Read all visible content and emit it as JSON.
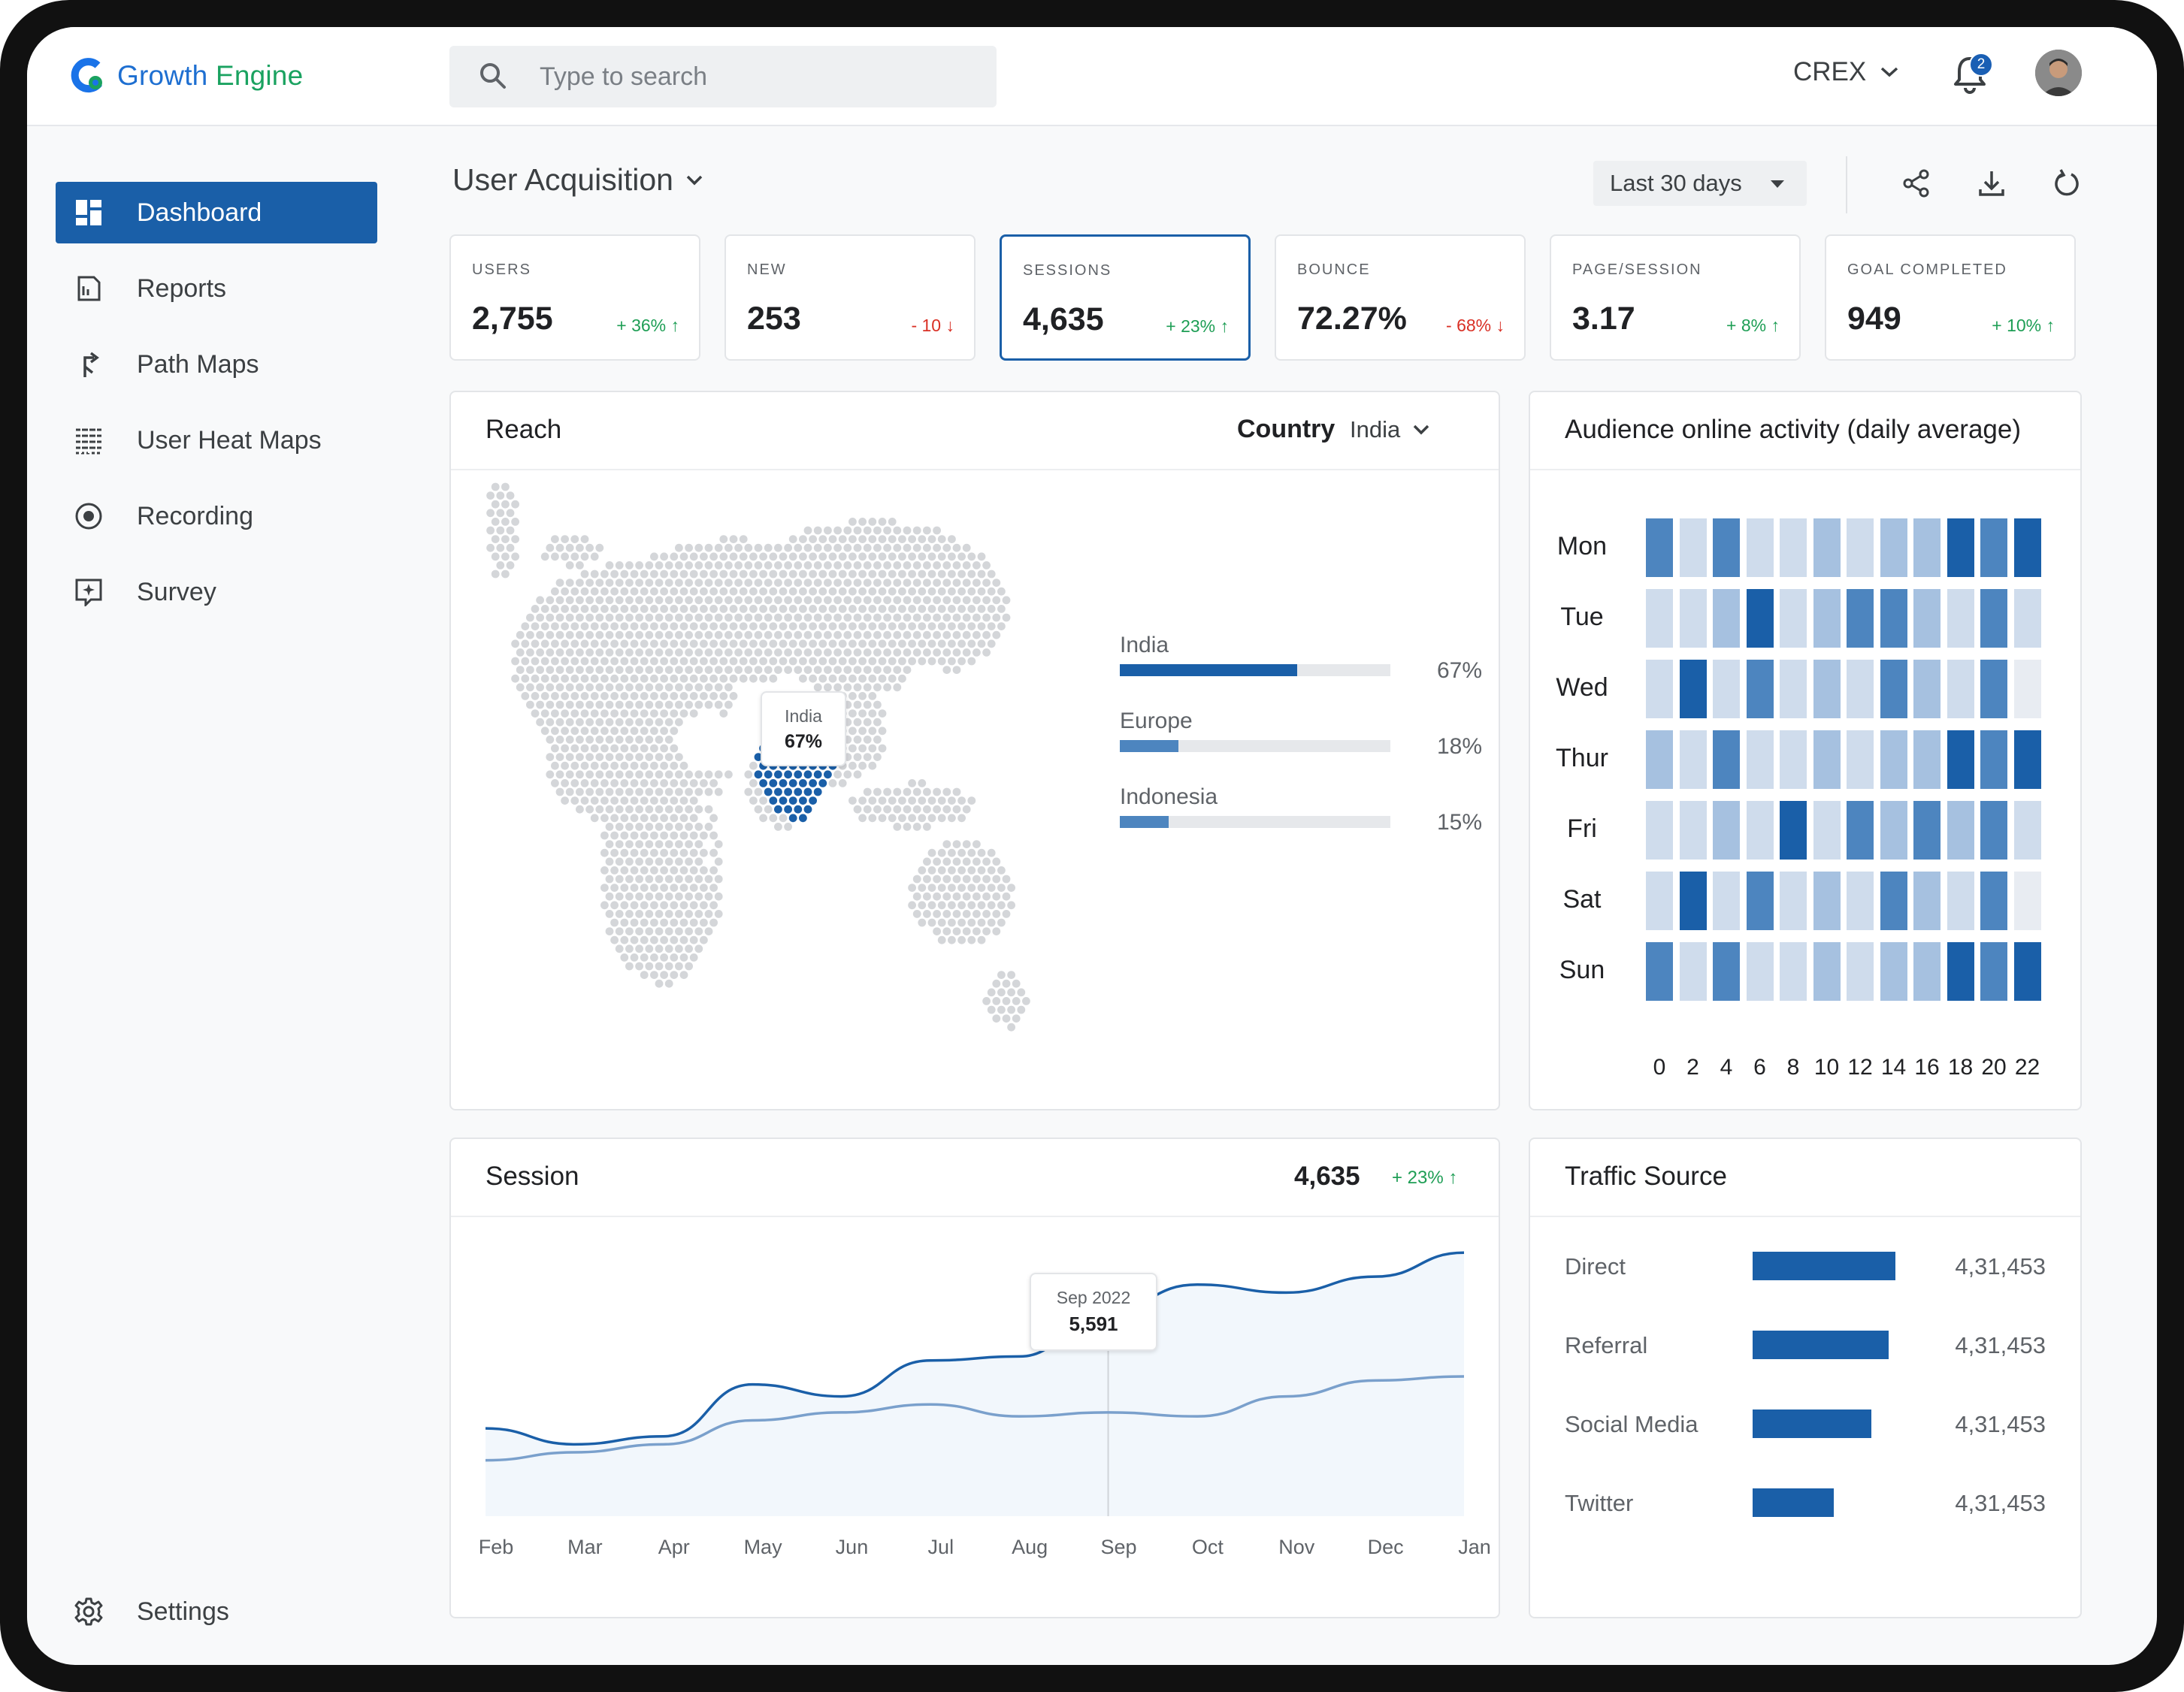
{
  "app": {
    "name_part1": "Growth",
    "name_part2": "Engine"
  },
  "search": {
    "placeholder": "Type to search"
  },
  "header": {
    "org": "CREX",
    "notifications": "2"
  },
  "sidebar": {
    "items": [
      {
        "label": "Dashboard",
        "icon": "dashboard-icon"
      },
      {
        "label": "Reports",
        "icon": "reports-icon"
      },
      {
        "label": "Path Maps",
        "icon": "path-icon"
      },
      {
        "label": "User Heat Maps",
        "icon": "heatmap-icon"
      },
      {
        "label": "Recording",
        "icon": "record-icon"
      },
      {
        "label": "Survey",
        "icon": "survey-icon"
      }
    ],
    "settings": "Settings"
  },
  "page": {
    "title": "User Acquisition",
    "range": "Last 30 days"
  },
  "kpis": [
    {
      "label": "USERS",
      "value": "2,755",
      "change": "+ 36% ↑",
      "trend": "up"
    },
    {
      "label": "NEW",
      "value": "253",
      "change": "- 10 ↓",
      "trend": "down"
    },
    {
      "label": "SESSIONS",
      "value": "4,635",
      "change": "+ 23% ↑",
      "trend": "up"
    },
    {
      "label": "BOUNCE",
      "value": "72.27%",
      "change": "- 68% ↓",
      "trend": "down"
    },
    {
      "label": "PAGE/SESSION",
      "value": "3.17",
      "change": "+ 8% ↑",
      "trend": "up"
    },
    {
      "label": "GOAL COMPLETED",
      "value": "949",
      "change": "+ 10% ↑",
      "trend": "up"
    }
  ],
  "reach": {
    "title": "Reach",
    "filter_label": "Country",
    "filter_value": "India",
    "tooltip_name": "India",
    "tooltip_value": "67%",
    "rows": [
      {
        "name": "India",
        "value": "67%",
        "pct": 0.67
      },
      {
        "name": "Europe",
        "value": "18%",
        "pct": 0.18
      },
      {
        "name": "Indonesia",
        "value": "15%",
        "pct": 0.15
      }
    ]
  },
  "activity": {
    "title": "Audience online activity (daily average)",
    "days": [
      "Mon",
      "Tue",
      "Wed",
      "Thur",
      "Fri",
      "Sat",
      "Sun"
    ],
    "hours": [
      "0",
      "2",
      "4",
      "6",
      "8",
      "10",
      "12",
      "14",
      "16",
      "18",
      "20",
      "22"
    ],
    "levels": [
      [
        3,
        1,
        3,
        1,
        1,
        2,
        1,
        2,
        2,
        4,
        3,
        4
      ],
      [
        1,
        1,
        2,
        4,
        1,
        2,
        3,
        3,
        2,
        1,
        3,
        1
      ],
      [
        1,
        4,
        1,
        3,
        1,
        2,
        1,
        3,
        2,
        1,
        3,
        0
      ],
      [
        2,
        1,
        3,
        1,
        1,
        2,
        1,
        2,
        2,
        4,
        3,
        4
      ],
      [
        1,
        1,
        2,
        1,
        4,
        1,
        3,
        2,
        3,
        2,
        3,
        1
      ],
      [
        1,
        4,
        1,
        3,
        1,
        2,
        1,
        3,
        2,
        1,
        3,
        0
      ],
      [
        3,
        1,
        3,
        1,
        1,
        2,
        1,
        2,
        2,
        4,
        3,
        4
      ]
    ],
    "colors": [
      "#e8ecf2",
      "#cfdcec",
      "#a6c1e0",
      "#4d85bf",
      "#1a5fa8"
    ]
  },
  "session": {
    "title": "Session",
    "total": "4,635",
    "change": "+ 23% ↑",
    "tooltip_date": "Sep 2022",
    "tooltip_value": "5,591",
    "months": [
      "Feb",
      "Mar",
      "Apr",
      "May",
      "Jun",
      "Jul",
      "Aug",
      "Sep",
      "Oct",
      "Nov",
      "Dec",
      "Jan"
    ]
  },
  "traffic": {
    "title": "Traffic Source",
    "rows": [
      {
        "label": "Direct",
        "value": "4,31,453",
        "pct": 1.0
      },
      {
        "label": "Referral",
        "value": "4,31,453",
        "pct": 0.95
      },
      {
        "label": "Social Media",
        "value": "4,31,453",
        "pct": 0.83
      },
      {
        "label": "Twitter",
        "value": "4,31,453",
        "pct": 0.57
      }
    ]
  },
  "chart_data": {
    "type": "line",
    "x": [
      "Feb",
      "Mar",
      "Apr",
      "May",
      "Jun",
      "Jul",
      "Aug",
      "Sep",
      "Oct",
      "Nov",
      "Dec",
      "Jan"
    ],
    "series": [
      {
        "values": [
          4100,
          3900,
          4000,
          4650,
          4500,
          4950,
          5000,
          5591,
          5900,
          5800,
          6000,
          6300
        ]
      },
      {
        "values": [
          3700,
          3800,
          3900,
          4200,
          4300,
          4400,
          4250,
          4300,
          4250,
          4500,
          4700,
          4750
        ]
      }
    ],
    "annotations": [
      {
        "x": "Sep",
        "label": "Sep 2022",
        "value": "5,591"
      }
    ]
  }
}
